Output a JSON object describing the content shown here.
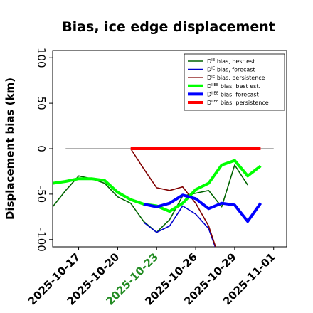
{
  "chart_data": {
    "type": "line",
    "title": "Bias, ice edge displacement",
    "ylabel": "Displacement bias (km)",
    "xlabel": "",
    "ylim": [
      -108,
      108
    ],
    "yticks": [
      100,
      50,
      0,
      -50,
      -100
    ],
    "x_dates": [
      "2025-10-15",
      "2025-10-16",
      "2025-10-17",
      "2025-10-18",
      "2025-10-19",
      "2025-10-20",
      "2025-10-21",
      "2025-10-22",
      "2025-10-23",
      "2025-10-24",
      "2025-10-25",
      "2025-10-26",
      "2025-10-27",
      "2025-10-28",
      "2025-10-29",
      "2025-10-30",
      "2025-10-31",
      "2025-11-01"
    ],
    "xlim": [
      "2025-10-15",
      "2025-11-02"
    ],
    "xtick_labels": [
      "2025-10-17",
      "2025-10-20",
      "2025-10-23",
      "2025-10-26",
      "2025-10-29",
      "2025-11-01"
    ],
    "xtick_colors": [
      "#000000",
      "#000000",
      "#228B22",
      "#000000",
      "#000000",
      "#000000"
    ],
    "zero_line": {
      "x_start": "2025-10-16",
      "x_end": "2025-11-01",
      "y": 0,
      "color": "#808080"
    },
    "legend_position": "top-right",
    "series": [
      {
        "name": "D^IE bias, best est.",
        "legend_main": "D",
        "legend_sup": "IE",
        "legend_rest": " bias, best est.",
        "color": "#006400",
        "width": 1.6,
        "values": [
          -64,
          -46,
          -30,
          -33,
          -38,
          -53,
          -60,
          -80,
          -92,
          -78,
          -52,
          -49,
          -46,
          -64,
          -18,
          -40,
          null,
          null
        ]
      },
      {
        "name": "D^IE bias, forecast",
        "legend_main": "D",
        "legend_sup": "IE",
        "legend_rest": " bias, forecast",
        "color": "#0000cd",
        "width": 1.6,
        "values": [
          null,
          null,
          null,
          null,
          null,
          null,
          null,
          -81,
          -92,
          -85,
          -63,
          -72,
          -88,
          -128,
          null,
          null,
          null,
          null
        ]
      },
      {
        "name": "D^IE bias, persistence",
        "legend_main": "D",
        "legend_sup": "IE",
        "legend_rest": " bias, persistence",
        "color": "#800000",
        "width": 1.6,
        "values": [
          null,
          null,
          null,
          null,
          null,
          null,
          0,
          -22,
          -43,
          -46,
          -42,
          -60,
          -85,
          -128,
          null,
          null,
          null,
          null
        ]
      },
      {
        "name": "D^IIEE bias, best est.",
        "legend_main": "D",
        "legend_sup": "IIEE",
        "legend_rest": " bias, best est.",
        "color": "#00ff00",
        "width": 4,
        "values": [
          -38,
          -36,
          -33,
          -33,
          -35,
          -48,
          -56,
          -61,
          -63,
          -69,
          -60,
          -45,
          -38,
          -18,
          -13,
          -30,
          -19,
          null
        ]
      },
      {
        "name": "D^IIEE bias, forecast",
        "legend_main": "D",
        "legend_sup": "IIEE",
        "legend_rest": " bias, forecast",
        "color": "#0000ff",
        "width": 4,
        "values": [
          null,
          null,
          null,
          null,
          null,
          null,
          null,
          -61,
          -64,
          -60,
          -51,
          -55,
          -66,
          -60,
          -62,
          -80,
          -60,
          null
        ]
      },
      {
        "name": "D^IIEE bias, persistence",
        "legend_main": "D",
        "legend_sup": "IIEE",
        "legend_rest": " bias, persistence",
        "color": "#ff0000",
        "width": 4,
        "values": [
          null,
          null,
          null,
          null,
          null,
          null,
          0,
          0,
          0,
          0,
          0,
          0,
          0,
          0,
          0,
          0,
          0,
          null
        ]
      }
    ]
  }
}
